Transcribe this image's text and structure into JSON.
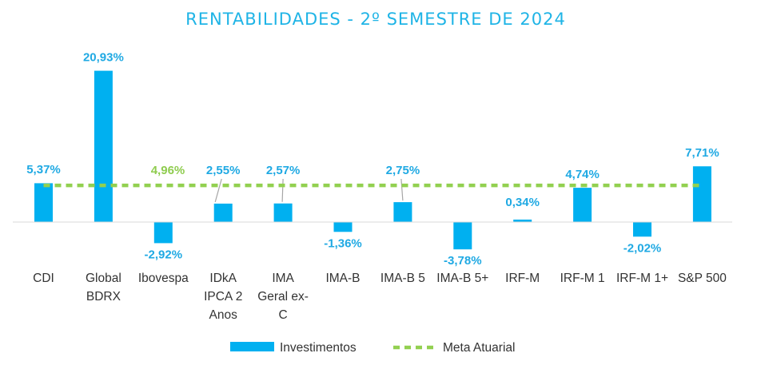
{
  "chart_data": {
    "type": "bar",
    "title": "RENTABILIDADES - 2º SEMESTRE DE 2024",
    "categories": [
      [
        "CDI"
      ],
      [
        "Global",
        "BDRX"
      ],
      [
        "Ibovespa"
      ],
      [
        "IDkA",
        "IPCA 2",
        "Anos"
      ],
      [
        "IMA",
        "Geral ex-",
        "C"
      ],
      [
        "IMA-B"
      ],
      [
        "IMA-B 5"
      ],
      [
        "IMA-B 5+"
      ],
      [
        "IRF-M"
      ],
      [
        "IRF-M 1"
      ],
      [
        "IRF-M 1+"
      ],
      [
        "S&P 500"
      ]
    ],
    "series": [
      {
        "name": "Investimentos",
        "type": "bar",
        "color": "#00b0f0",
        "values": [
          5.37,
          20.93,
          -2.92,
          2.55,
          2.57,
          -1.36,
          2.75,
          -3.78,
          0.34,
          4.74,
          -2.02,
          7.71
        ],
        "labels": [
          "5,37%",
          "20,93%",
          "-2,92%",
          "2,55%",
          "2,57%",
          "-1,36%",
          "2,75%",
          "-3,78%",
          "0,34%",
          "4,74%",
          "-2,02%",
          "7,71%"
        ]
      },
      {
        "name": "Meta Atuarial",
        "type": "line",
        "style": "dashed",
        "color": "#92d050",
        "value": 4.96,
        "label": "4,96%"
      }
    ],
    "ylim": [
      -5,
      23
    ],
    "grid": false,
    "legend": "bottom",
    "xlabel": "",
    "ylabel": ""
  }
}
